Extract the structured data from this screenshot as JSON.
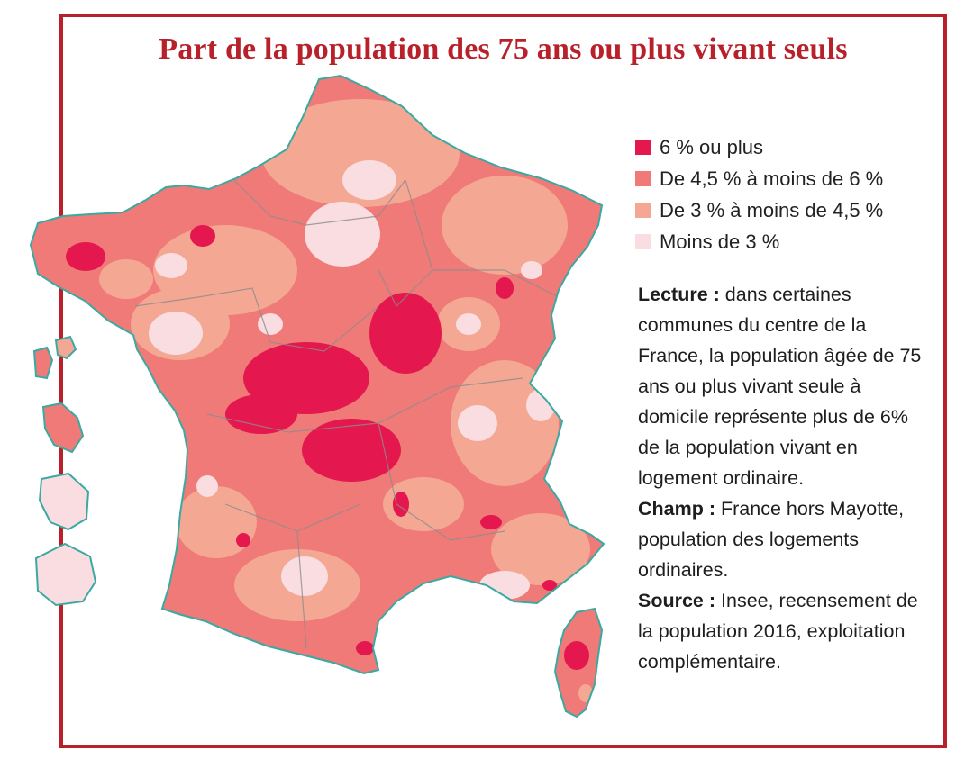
{
  "title": "Part de la population des 75 ans ou plus vivant seuls",
  "legend": [
    {
      "label": "6 % ou plus",
      "color": "#e4174e"
    },
    {
      "label": "De 4,5 % à moins de 6 %",
      "color": "#ef7a78"
    },
    {
      "label": "De 3 % à moins de 4,5 %",
      "color": "#f4a793"
    },
    {
      "label": "Moins de 3 %",
      "color": "#f9dde0"
    }
  ],
  "notes": {
    "lecture_label": "Lecture :",
    "lecture_text": "dans certaines communes du centre de la France, la population âgée de 75 ans ou plus vivant seule à domicile représente plus de 6% de la population vivant en logement ordinaire.",
    "champ_label": "Champ :",
    "champ_text": "France hors Mayotte, population des logements ordinaires.",
    "source_label": "Source :",
    "source_text": "Insee, recensement de la population 2016, exploitation complémentaire."
  },
  "colors": {
    "frame": "#b8202a",
    "coast": "#3aa9a2",
    "border": "#8c8c8c"
  }
}
